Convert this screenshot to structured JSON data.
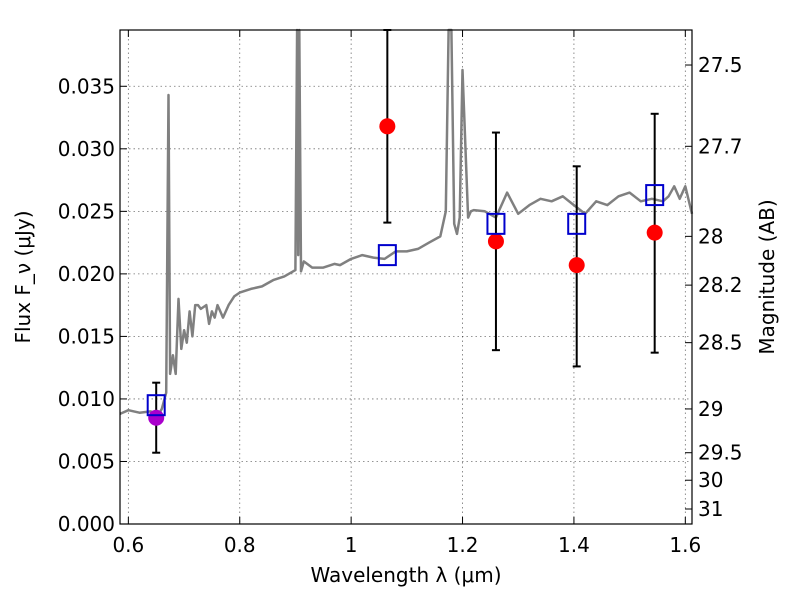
{
  "chart_data": {
    "type": "scatter",
    "title": "",
    "xlabel": "Wavelength λ (μm)",
    "ylabel": "Flux F_ν (μJy)",
    "y2label": "Magnitude (AB)",
    "xlim": [
      0.585,
      1.612
    ],
    "ylim": [
      0.0,
      0.0395
    ],
    "grid": true,
    "x_ticks": [
      {
        "value": 0.6,
        "label": "0.6"
      },
      {
        "value": 0.8,
        "label": "0.8"
      },
      {
        "value": 1.0,
        "label": "1"
      },
      {
        "value": 1.2,
        "label": "1.2"
      },
      {
        "value": 1.4,
        "label": "1.4"
      },
      {
        "value": 1.6,
        "label": "1.6"
      }
    ],
    "y_ticks": [
      {
        "value": 0.0,
        "label": "0.000"
      },
      {
        "value": 0.005,
        "label": "0.005"
      },
      {
        "value": 0.01,
        "label": "0.010"
      },
      {
        "value": 0.015,
        "label": "0.015"
      },
      {
        "value": 0.02,
        "label": "0.020"
      },
      {
        "value": 0.025,
        "label": "0.025"
      },
      {
        "value": 0.03,
        "label": "0.030"
      },
      {
        "value": 0.035,
        "label": "0.035"
      }
    ],
    "y2_ticks": [
      {
        "flux": 0.0367,
        "label": "27.5"
      },
      {
        "flux": 0.0302,
        "label": "27.7"
      },
      {
        "flux": 0.023,
        "label": "28"
      },
      {
        "flux": 0.0191,
        "label": "28.2"
      },
      {
        "flux": 0.0145,
        "label": "28.5"
      },
      {
        "flux": 0.0092,
        "label": "29"
      },
      {
        "flux": 0.0057,
        "label": "29.5"
      },
      {
        "flux": 0.0035,
        "label": "30"
      },
      {
        "flux": 0.0012,
        "label": "31"
      }
    ],
    "series": [
      {
        "kind": "line",
        "color": "#808080",
        "x": [
          0.585,
          0.6,
          0.62,
          0.64,
          0.655,
          0.66,
          0.668,
          0.672,
          0.675,
          0.68,
          0.685,
          0.69,
          0.695,
          0.7,
          0.705,
          0.71,
          0.715,
          0.72,
          0.725,
          0.73,
          0.74,
          0.745,
          0.75,
          0.755,
          0.76,
          0.765,
          0.77,
          0.775,
          0.78,
          0.79,
          0.8,
          0.82,
          0.84,
          0.86,
          0.88,
          0.9,
          0.903,
          0.905,
          0.907,
          0.91,
          0.915,
          0.93,
          0.95,
          0.97,
          0.98,
          1.0,
          1.02,
          1.04,
          1.06,
          1.08,
          1.1,
          1.12,
          1.14,
          1.16,
          1.17,
          1.175,
          1.18,
          1.185,
          1.19,
          1.195,
          1.2,
          1.21,
          1.215,
          1.22,
          1.24,
          1.26,
          1.28,
          1.3,
          1.32,
          1.34,
          1.36,
          1.38,
          1.4,
          1.42,
          1.44,
          1.46,
          1.48,
          1.5,
          1.52,
          1.54,
          1.56,
          1.57,
          1.58,
          1.59,
          1.6,
          1.612
        ],
        "y": [
          0.0088,
          0.0091,
          0.0089,
          0.009,
          0.0088,
          0.0092,
          0.0105,
          0.0343,
          0.012,
          0.0135,
          0.012,
          0.018,
          0.014,
          0.0155,
          0.0145,
          0.017,
          0.015,
          0.0175,
          0.0175,
          0.0172,
          0.0175,
          0.016,
          0.017,
          0.0165,
          0.0175,
          0.017,
          0.0165,
          0.017,
          0.0175,
          0.0182,
          0.0185,
          0.0188,
          0.019,
          0.0195,
          0.0198,
          0.0203,
          0.0395,
          0.0215,
          0.0395,
          0.0202,
          0.021,
          0.0205,
          0.0205,
          0.0208,
          0.0207,
          0.0212,
          0.0215,
          0.0213,
          0.0212,
          0.0218,
          0.0218,
          0.022,
          0.0225,
          0.023,
          0.025,
          0.0395,
          0.0395,
          0.024,
          0.0232,
          0.0245,
          0.0363,
          0.0245,
          0.025,
          0.0251,
          0.025,
          0.0245,
          0.0265,
          0.0248,
          0.0255,
          0.026,
          0.0258,
          0.0262,
          0.0255,
          0.0248,
          0.0258,
          0.0255,
          0.0262,
          0.0265,
          0.0258,
          0.026,
          0.0258,
          0.0262,
          0.027,
          0.026,
          0.027,
          0.0248
        ]
      },
      {
        "kind": "points",
        "marker": "circle",
        "color": "#ff0000",
        "x": [
          1.065,
          1.26,
          1.405,
          1.545
        ],
        "y": [
          0.0318,
          0.0226,
          0.0207,
          0.0233
        ],
        "yerr_low": [
          0.0241,
          0.0139,
          0.0126,
          0.0137
        ],
        "yerr_high": [
          0.0395,
          0.0313,
          0.0286,
          0.0328
        ]
      },
      {
        "kind": "points",
        "marker": "circle",
        "color": "#aa00cc",
        "x": [
          0.65
        ],
        "y": [
          0.0085
        ],
        "yerr_low": [
          0.0057
        ],
        "yerr_high": [
          0.0113
        ]
      },
      {
        "kind": "points",
        "marker": "square-open",
        "color": "#0000cc",
        "x": [
          0.65,
          1.065,
          1.26,
          1.405,
          1.545
        ],
        "y": [
          0.0095,
          0.0215,
          0.024,
          0.024,
          0.0263
        ]
      }
    ]
  }
}
